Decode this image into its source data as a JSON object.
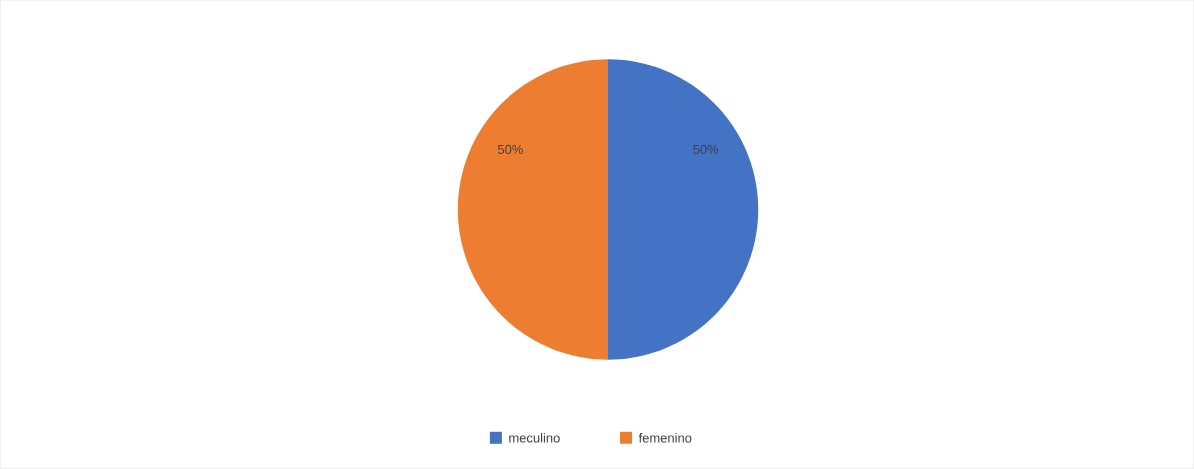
{
  "chart_data": {
    "type": "pie",
    "categories": [
      "meculino",
      "femenino"
    ],
    "values": [
      50,
      50
    ],
    "value_labels": [
      "50%",
      "50%"
    ],
    "colors": [
      "#4472c4",
      "#ed7d31"
    ],
    "legend": "bottom"
  }
}
